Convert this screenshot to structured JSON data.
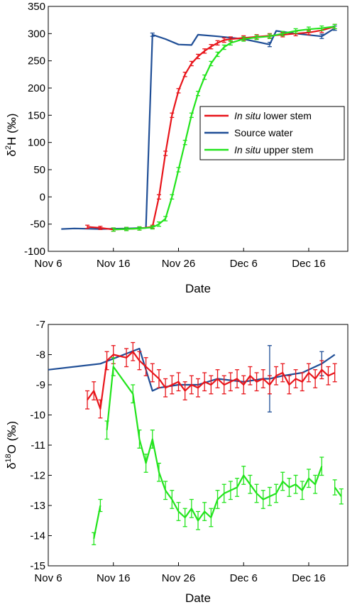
{
  "colors": {
    "lower": "#e8141a",
    "source": "#1f4e96",
    "upper": "#22e41c"
  },
  "chart_data": [
    {
      "type": "line",
      "title": "",
      "xlabel": "Date",
      "ylabel": "δ²H (‰)",
      "ylabel_parts": {
        "pre": "δ",
        "sup": "2",
        "post": "H (‰)"
      },
      "xlim": [
        "2018-11-06",
        "2018-12-22"
      ],
      "ylim": [
        -100,
        350
      ],
      "xticks": [
        {
          "date": "2018-11-06",
          "label": "Nov 6"
        },
        {
          "date": "2018-11-16",
          "label": "Nov 16"
        },
        {
          "date": "2018-11-26",
          "label": "Nov 26"
        },
        {
          "date": "2018-12-06",
          "label": "Dec 6"
        },
        {
          "date": "2018-12-16",
          "label": "Dec 16"
        }
      ],
      "yticks": [
        -100,
        -50,
        0,
        50,
        100,
        150,
        200,
        250,
        300,
        350
      ],
      "legend": {
        "position": "center-right",
        "entries": [
          {
            "series": "lower",
            "italic": "In situ",
            "rest": " lower stem"
          },
          {
            "series": "source",
            "italic": "",
            "rest": "Source water"
          },
          {
            "series": "upper",
            "italic": "In situ",
            "rest": " upper stem"
          }
        ]
      },
      "series": [
        {
          "key": "source",
          "color_key": "source",
          "error_bars": true,
          "x": [
            "2018-11-08",
            "2018-11-10",
            "2018-11-14",
            "2018-11-18",
            "2018-11-21",
            "2018-11-22",
            "2018-11-24",
            "2018-11-26",
            "2018-11-28",
            "2018-11-29",
            "2018-12-02",
            "2018-12-06",
            "2018-12-10",
            "2018-12-11",
            "2018-12-14",
            "2018-12-18",
            "2018-12-20"
          ],
          "y": [
            -59,
            -58,
            -59,
            -58,
            -57,
            298,
            290,
            280,
            279,
            298,
            295,
            290,
            280,
            305,
            300,
            295,
            310
          ],
          "err": [
            0,
            0,
            0,
            0,
            0,
            3,
            0,
            0,
            0,
            0,
            0,
            0,
            4,
            0,
            0,
            4,
            4
          ]
        },
        {
          "key": "lower",
          "color_key": "lower",
          "error_bars": true,
          "x": [
            "2018-11-12",
            "2018-11-14",
            "2018-11-16",
            "2018-11-18",
            "2018-11-20",
            "2018-11-22",
            "2018-11-23",
            "2018-11-24",
            "2018-11-25",
            "2018-11-26",
            "2018-11-27",
            "2018-11-28",
            "2018-11-29",
            "2018-11-30",
            "2018-12-01",
            "2018-12-02",
            "2018-12-03",
            "2018-12-04",
            "2018-12-06",
            "2018-12-08",
            "2018-12-10",
            "2018-12-12",
            "2018-12-14",
            "2018-12-16",
            "2018-12-18",
            "2018-12-20"
          ],
          "y": [
            -55,
            -57,
            -60,
            -59,
            -58,
            -55,
            0,
            80,
            150,
            195,
            225,
            245,
            258,
            268,
            276,
            283,
            288,
            290,
            292,
            294,
            296,
            298,
            300,
            302,
            306,
            313
          ],
          "err": [
            3,
            3,
            3,
            3,
            3,
            3,
            4,
            4,
            4,
            4,
            4,
            4,
            4,
            4,
            4,
            4,
            4,
            4,
            4,
            4,
            4,
            4,
            4,
            4,
            4,
            4
          ]
        },
        {
          "key": "upper",
          "color_key": "upper",
          "error_bars": true,
          "x": [
            "2018-11-16",
            "2018-11-18",
            "2018-11-20",
            "2018-11-22",
            "2018-11-23",
            "2018-11-24",
            "2018-11-25",
            "2018-11-26",
            "2018-11-27",
            "2018-11-28",
            "2018-11-29",
            "2018-11-30",
            "2018-12-01",
            "2018-12-02",
            "2018-12-03",
            "2018-12-04",
            "2018-12-06",
            "2018-12-08",
            "2018-12-10",
            "2018-12-12",
            "2018-12-14",
            "2018-12-16",
            "2018-12-18",
            "2018-12-20"
          ],
          "y": [
            -60,
            -59,
            -58,
            -56,
            -50,
            -40,
            0,
            50,
            100,
            150,
            190,
            220,
            245,
            262,
            275,
            283,
            290,
            293,
            295,
            300,
            305,
            308,
            310,
            313
          ],
          "err": [
            3,
            3,
            3,
            3,
            4,
            4,
            4,
            4,
            4,
            4,
            4,
            4,
            4,
            4,
            4,
            4,
            4,
            4,
            4,
            4,
            4,
            4,
            4,
            4
          ]
        }
      ]
    },
    {
      "type": "line",
      "title": "",
      "xlabel": "Date",
      "ylabel": "δ¹⁸O (‰)",
      "ylabel_parts": {
        "pre": "δ",
        "sup": "18",
        "post": "O (‰)"
      },
      "xlim": [
        "2018-11-06",
        "2018-12-22"
      ],
      "ylim": [
        -15,
        -7
      ],
      "xticks": [
        {
          "date": "2018-11-06",
          "label": "Nov 6"
        },
        {
          "date": "2018-11-16",
          "label": "Nov 16"
        },
        {
          "date": "2018-11-26",
          "label": "Nov 26"
        },
        {
          "date": "2018-12-06",
          "label": "Dec 6"
        },
        {
          "date": "2018-12-16",
          "label": "Dec 16"
        }
      ],
      "yticks": [
        -15,
        -14,
        -13,
        -12,
        -11,
        -10,
        -9,
        -8,
        -7
      ],
      "series": [
        {
          "key": "source",
          "color_key": "source",
          "error_bars": true,
          "x": [
            "2018-11-06",
            "2018-11-14",
            "2018-11-20",
            "2018-11-22",
            "2018-11-23",
            "2018-11-26",
            "2018-11-29",
            "2018-12-02",
            "2018-12-06",
            "2018-12-09",
            "2018-12-10",
            "2018-12-12",
            "2018-12-15",
            "2018-12-18",
            "2018-12-20"
          ],
          "y": [
            -8.5,
            -8.3,
            -7.8,
            -9.2,
            -9.1,
            -9.0,
            -9.0,
            -8.8,
            -8.9,
            -8.8,
            -8.8,
            -8.7,
            -8.6,
            -8.3,
            -8.0
          ],
          "err": [
            0,
            0,
            0,
            0,
            0,
            0,
            0,
            0,
            0,
            0,
            1.1,
            0,
            0,
            0.4,
            0
          ]
        },
        {
          "key": "lower",
          "color_key": "lower",
          "error_bars": true,
          "x": [
            "2018-11-12",
            "2018-11-13",
            "2018-11-14",
            "2018-11-15",
            "2018-11-16",
            "2018-11-18",
            "2018-11-19",
            "2018-11-20",
            "2018-11-21",
            "2018-11-22",
            "2018-11-23",
            "2018-11-24",
            "2018-11-25",
            "2018-11-26",
            "2018-11-27",
            "2018-11-28",
            "2018-11-29",
            "2018-11-30",
            "2018-12-01",
            "2018-12-02",
            "2018-12-03",
            "2018-12-04",
            "2018-12-05",
            "2018-12-06",
            "2018-12-07",
            "2018-12-08",
            "2018-12-09",
            "2018-12-10",
            "2018-12-11",
            "2018-12-12",
            "2018-12-13",
            "2018-12-14",
            "2018-12-15",
            "2018-12-16",
            "2018-12-17",
            "2018-12-18",
            "2018-12-19",
            "2018-12-20"
          ],
          "y": [
            -9.5,
            -9.2,
            -9.8,
            -8.2,
            -8.0,
            -8.1,
            -7.9,
            -8.2,
            -8.4,
            -8.6,
            -8.8,
            -9.1,
            -9.0,
            -8.9,
            -9.2,
            -9.0,
            -9.1,
            -8.9,
            -9.0,
            -8.8,
            -9.0,
            -8.9,
            -8.8,
            -9.0,
            -8.7,
            -8.9,
            -8.8,
            -9.0,
            -8.7,
            -8.6,
            -9.0,
            -8.8,
            -8.9,
            -8.6,
            -8.8,
            -8.5,
            -8.7,
            -8.6
          ],
          "err": [
            0.3,
            0.3,
            0.3,
            0.3,
            0.3,
            0.3,
            0.3,
            0.3,
            0.3,
            0.3,
            0.3,
            0.3,
            0.3,
            0.3,
            0.3,
            0.3,
            0.3,
            0.3,
            0.3,
            0.3,
            0.3,
            0.3,
            0.3,
            0.3,
            0.3,
            0.3,
            0.3,
            0.3,
            0.3,
            0.3,
            0.3,
            0.3,
            0.3,
            0.3,
            0.3,
            0.3,
            0.3,
            0.3
          ]
        },
        {
          "key": "upper_a",
          "color_key": "upper",
          "error_bars": true,
          "x": [
            "2018-11-13",
            "2018-11-14"
          ],
          "y": [
            -14.1,
            -13.0
          ],
          "err": [
            0.2,
            0.2
          ]
        },
        {
          "key": "upper_b",
          "color_key": "upper",
          "error_bars": true,
          "x": [
            "2018-11-15",
            "2018-11-16",
            "2018-11-19",
            "2018-11-20",
            "2018-11-21",
            "2018-11-22",
            "2018-11-23",
            "2018-11-24",
            "2018-11-25",
            "2018-11-26",
            "2018-11-27",
            "2018-11-28",
            "2018-11-29",
            "2018-11-30",
            "2018-12-01",
            "2018-12-02",
            "2018-12-03",
            "2018-12-04",
            "2018-12-05",
            "2018-12-06",
            "2018-12-07",
            "2018-12-08",
            "2018-12-09",
            "2018-12-10",
            "2018-12-11",
            "2018-12-12",
            "2018-12-13",
            "2018-12-14",
            "2018-12-15",
            "2018-12-16",
            "2018-12-17",
            "2018-12-18"
          ],
          "y": [
            -10.5,
            -8.4,
            -9.3,
            -10.8,
            -11.6,
            -10.8,
            -11.9,
            -12.5,
            -12.8,
            -13.2,
            -13.4,
            -13.1,
            -13.5,
            -13.2,
            -13.4,
            -12.8,
            -12.6,
            -12.5,
            -12.4,
            -12.0,
            -12.3,
            -12.6,
            -12.8,
            -12.7,
            -12.6,
            -12.2,
            -12.4,
            -12.3,
            -12.5,
            -12.1,
            -12.3,
            -11.7
          ],
          "err": [
            0.3,
            0.3,
            0.3,
            0.3,
            0.3,
            0.3,
            0.3,
            0.3,
            0.3,
            0.3,
            0.3,
            0.3,
            0.3,
            0.3,
            0.3,
            0.3,
            0.3,
            0.3,
            0.3,
            0.3,
            0.3,
            0.3,
            0.3,
            0.3,
            0.3,
            0.3,
            0.3,
            0.3,
            0.3,
            0.3,
            0.3,
            0.3
          ]
        },
        {
          "key": "upper_c",
          "color_key": "upper",
          "error_bars": true,
          "x": [
            "2018-12-20",
            "2018-12-21"
          ],
          "y": [
            -12.4,
            -12.7
          ],
          "err": [
            0.25,
            0.25
          ]
        }
      ]
    }
  ]
}
